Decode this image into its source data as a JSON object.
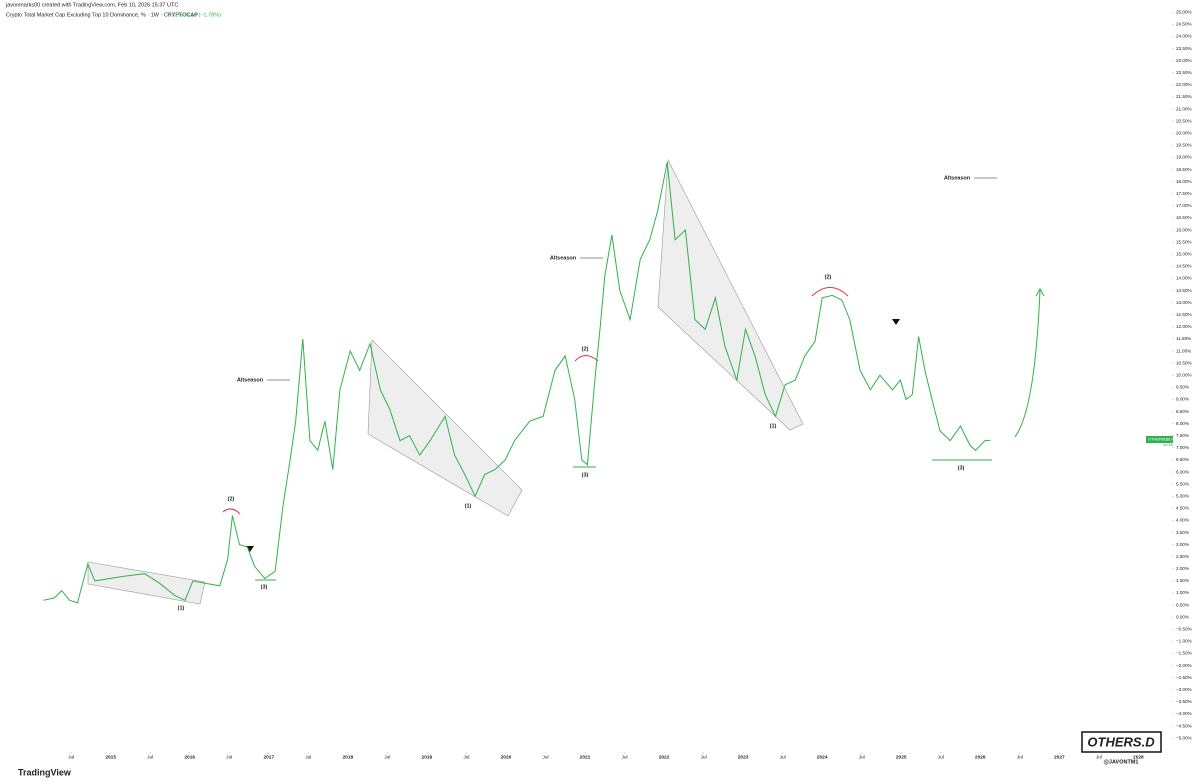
{
  "header": {
    "credit": "javonmarks00 created with TradingView.com, Feb 10, 2026 15:37 UTC",
    "symbol": "Crypto Total Market Cap Excluding Top 10 Dominance, % · 1W · CRYPTOCAP",
    "last": "7.31%",
    "change": "−0.13 (−1.78%)"
  },
  "chart_data": {
    "type": "line",
    "title": "OTHERS.D",
    "handle": "@JAVONTM1",
    "brand": "TradingView",
    "price_tag": {
      "name": "OTHERS.D",
      "value": "7.31%",
      "timer": "4d 8h"
    },
    "annotations": [
      "Altseason",
      "Altseason",
      "Altseason",
      "(1)",
      "(1)",
      "(1)",
      "(2)",
      "(2)",
      "(2)",
      "(3)",
      "(3)",
      "(3)"
    ],
    "series": [
      {
        "name": "OTHERS.D",
        "color": "#2fb24c",
        "x": [
          2014.15,
          2014.29,
          2014.38,
          2014.48,
          2014.58,
          2014.71,
          2014.8,
          2014.99,
          2015.18,
          2015.43,
          2015.62,
          2015.81,
          2015.94,
          2016.04,
          2016.19,
          2016.38,
          2016.48,
          2016.54,
          2016.63,
          2016.73,
          2016.82,
          2016.95,
          2017.08,
          2017.18,
          2017.27,
          2017.34,
          2017.43,
          2017.52,
          2017.62,
          2017.71,
          2017.81,
          2017.9,
          2018.03,
          2018.15,
          2018.28,
          2018.41,
          2018.53,
          2018.66,
          2018.78,
          2018.91,
          2019.04,
          2019.23,
          2019.35,
          2019.48,
          2019.61,
          2019.73,
          2019.86,
          2019.99,
          2020.11,
          2020.3,
          2020.47,
          2020.62,
          2020.75,
          2020.87,
          2020.96,
          2021.03,
          2021.13,
          2021.19,
          2021.25,
          2021.34,
          2021.44,
          2021.57,
          2021.7,
          2021.82,
          2021.92,
          2022.04,
          2022.14,
          2022.27,
          2022.39,
          2022.52,
          2022.65,
          2022.77,
          2022.92,
          2023.03,
          2023.15,
          2023.28,
          2023.41,
          2023.53,
          2023.66,
          2023.78,
          2023.91,
          2024.0,
          2024.13,
          2024.25,
          2024.35,
          2024.48,
          2024.61,
          2024.73,
          2024.89,
          2024.99,
          2025.06,
          2025.14,
          2025.22,
          2025.3,
          2025.39,
          2025.49,
          2025.62,
          2025.75,
          2025.87,
          2025.94,
          2026.06,
          2026.13
        ],
        "values": [
          0.7,
          0.8,
          1.1,
          0.7,
          0.6,
          2.2,
          1.5,
          1.6,
          1.7,
          1.8,
          1.4,
          0.9,
          0.7,
          1.5,
          1.4,
          1.3,
          2.4,
          4.2,
          3.0,
          2.9,
          2.1,
          1.6,
          1.9,
          4.6,
          6.5,
          8.1,
          11.5,
          7.3,
          6.9,
          8.1,
          6.1,
          9.4,
          11.0,
          10.2,
          11.3,
          9.4,
          8.6,
          7.3,
          7.5,
          6.7,
          7.3,
          8.3,
          6.7,
          5.9,
          5.0,
          5.9,
          6.1,
          6.5,
          7.3,
          8.1,
          8.3,
          10.2,
          10.8,
          9.0,
          6.5,
          6.3,
          10.0,
          11.9,
          14.1,
          15.8,
          13.5,
          12.3,
          14.8,
          15.6,
          16.8,
          18.8,
          15.6,
          16.0,
          12.3,
          11.9,
          13.2,
          11.2,
          9.8,
          11.9,
          10.8,
          9.2,
          8.3,
          9.6,
          9.8,
          10.8,
          11.4,
          13.2,
          13.3,
          13.1,
          12.3,
          10.2,
          9.4,
          10.0,
          9.4,
          9.8,
          9.0,
          9.2,
          11.6,
          10.2,
          9.0,
          7.7,
          7.3,
          7.9,
          7.1,
          6.9,
          7.3,
          7.31
        ]
      }
    ],
    "xlim": [
      2013.6,
      2028.4
    ],
    "xticks": [
      {
        "value": 2014.5,
        "label": "Jul"
      },
      2015,
      {
        "value": 2015.5,
        "label": "Jul"
      },
      2016,
      {
        "value": 2016.5,
        "label": "Jul"
      },
      2017,
      {
        "value": 2017.5,
        "label": "Jul"
      },
      2018,
      {
        "value": 2018.5,
        "label": "Jul"
      },
      2019,
      {
        "value": 2019.5,
        "label": "Jul"
      },
      2020,
      {
        "value": 2020.5,
        "label": "Jul"
      },
      2021,
      {
        "value": 2021.5,
        "label": "Jul"
      },
      2022,
      {
        "value": 2022.5,
        "label": "Jul"
      },
      2023,
      {
        "value": 2023.5,
        "label": "Jul"
      },
      2024,
      {
        "value": 2024.5,
        "label": "Jul"
      },
      2025,
      {
        "value": 2025.5,
        "label": "Jul"
      },
      2026,
      {
        "value": 2026.5,
        "label": "Jul"
      },
      2027,
      {
        "value": 2027.5,
        "label": "Jul"
      },
      2028
    ],
    "ylim": [
      -5.9,
      25.3
    ],
    "yticks": [
      {
        "value": 25,
        "label": "25.00%"
      },
      {
        "value": 24.5,
        "label": "24.50%"
      },
      {
        "value": 24,
        "label": "24.00%"
      },
      {
        "value": 23.5,
        "label": "23.50%"
      },
      {
        "value": 23,
        "label": "23.00%"
      },
      {
        "value": 22.5,
        "label": "22.50%"
      },
      {
        "value": 22,
        "label": "22.00%"
      },
      {
        "value": 21.5,
        "label": "21.50%"
      },
      {
        "value": 21,
        "label": "21.00%"
      },
      {
        "value": 20.5,
        "label": "20.50%"
      },
      {
        "value": 20,
        "label": "20.00%"
      },
      {
        "value": 19.5,
        "label": "19.50%"
      },
      {
        "value": 19,
        "label": "19.00%"
      },
      {
        "value": 18.5,
        "label": "18.50%"
      },
      {
        "value": 18,
        "label": "18.00%"
      },
      {
        "value": 17.5,
        "label": "17.50%"
      },
      {
        "value": 17,
        "label": "17.00%"
      },
      {
        "value": 16.5,
        "label": "16.50%"
      },
      {
        "value": 16,
        "label": "16.00%"
      },
      {
        "value": 15.5,
        "label": "15.50%"
      },
      {
        "value": 15,
        "label": "15.00%"
      },
      {
        "value": 14.5,
        "label": "14.50%"
      },
      {
        "value": 14,
        "label": "14.00%"
      },
      {
        "value": 13.5,
        "label": "13.50%"
      },
      {
        "value": 13,
        "label": "13.00%"
      },
      {
        "value": 12.5,
        "label": "12.50%"
      },
      {
        "value": 12,
        "label": "12.00%"
      },
      {
        "value": 11.5,
        "label": "11.50%"
      },
      {
        "value": 11,
        "label": "11.00%"
      },
      {
        "value": 10.5,
        "label": "10.50%"
      },
      {
        "value": 10,
        "label": "10.00%"
      },
      {
        "value": 9.5,
        "label": "9.50%"
      },
      {
        "value": 9,
        "label": "9.00%"
      },
      {
        "value": 8.5,
        "label": "8.50%"
      },
      {
        "value": 8,
        "label": "8.00%"
      },
      {
        "value": 7.5,
        "label": "7.50%"
      },
      {
        "value": 7,
        "label": "7.00%"
      },
      {
        "value": 6.5,
        "label": "6.50%"
      },
      {
        "value": 6,
        "label": "6.00%"
      },
      {
        "value": 5.5,
        "label": "5.50%"
      },
      {
        "value": 5,
        "label": "5.00%"
      },
      {
        "value": 4.5,
        "label": "4.50%"
      },
      {
        "value": 4,
        "label": "4.00%"
      },
      {
        "value": 3.5,
        "label": "3.50%"
      },
      {
        "value": 3,
        "label": "3.00%"
      },
      {
        "value": 2.5,
        "label": "2.50%"
      },
      {
        "value": 2,
        "label": "2.00%"
      },
      {
        "value": 1.5,
        "label": "1.50%"
      },
      {
        "value": 1,
        "label": "1.00%"
      },
      {
        "value": 0.5,
        "label": "0.50%"
      },
      {
        "value": 0,
        "label": "0.00%"
      },
      {
        "value": -0.5,
        "label": "−0.50%"
      },
      {
        "value": -1,
        "label": "−1.00%"
      },
      {
        "value": -1.5,
        "label": "−1.50%"
      },
      {
        "value": -2,
        "label": "−2.00%"
      },
      {
        "value": -2.5,
        "label": "−2.50%"
      },
      {
        "value": -3,
        "label": "−3.00%"
      },
      {
        "value": -3.5,
        "label": "−3.50%"
      },
      {
        "value": -4,
        "label": "−4.00%"
      },
      {
        "value": -4.5,
        "label": "−4.50%"
      },
      {
        "value": -5,
        "label": "−5.00%"
      }
    ],
    "grid": false
  }
}
